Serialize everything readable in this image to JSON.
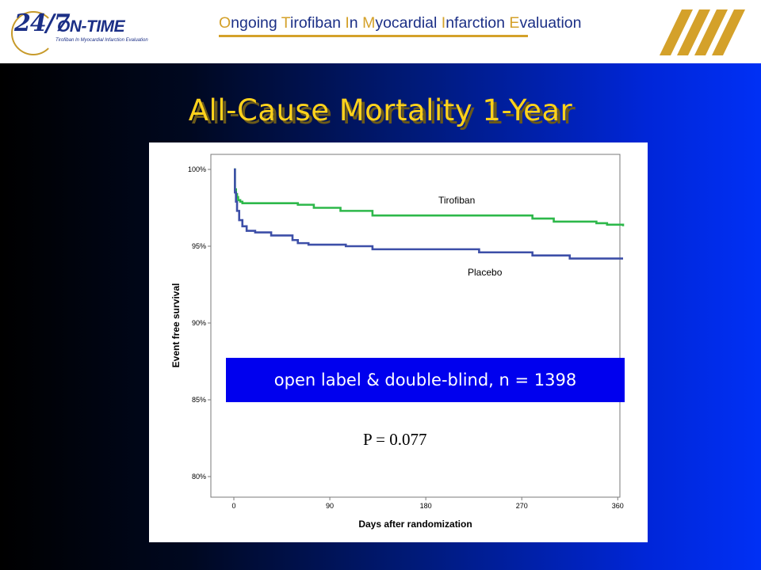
{
  "header": {
    "logo_numeral": "24/7",
    "logo_name": "ON-TIME",
    "logo_subtitle": "Tirofiban In Myocardial Infarction Evaluation",
    "trial_name_parts": [
      {
        "text": "O",
        "cap": true
      },
      {
        "text": "ngoing ",
        "cap": false
      },
      {
        "text": "T",
        "cap": true
      },
      {
        "text": "irofiban ",
        "cap": false
      },
      {
        "text": "I",
        "cap": true
      },
      {
        "text": "n ",
        "cap": false
      },
      {
        "text": "M",
        "cap": true
      },
      {
        "text": "yocardial ",
        "cap": false
      },
      {
        "text": "I",
        "cap": true
      },
      {
        "text": "nfarction ",
        "cap": false
      },
      {
        "text": "E",
        "cap": true
      },
      {
        "text": "valuation",
        "cap": false
      }
    ],
    "brand_color": "#1b2f86",
    "accent_color": "#d4a12a"
  },
  "slide": {
    "title": "All-Cause Mortality 1-Year",
    "title_color": "#ffd21c",
    "callout": "open label & double-blind, n = 1398",
    "pvalue": "P = 0.077"
  },
  "chart_data": {
    "type": "line",
    "xlabel": "Days after randomization",
    "ylabel": "Event free survival",
    "xlim": [
      0,
      365
    ],
    "ylim": [
      80,
      100
    ],
    "x_ticks": [
      0,
      90,
      180,
      270,
      360
    ],
    "x_tick_labels": [
      "0",
      "90",
      "180",
      "270",
      "360"
    ],
    "y_ticks": [
      80,
      85,
      90,
      95,
      100
    ],
    "y_tick_labels": [
      "80%",
      "85%",
      "90%",
      "95%",
      "100%"
    ],
    "series": [
      {
        "name": "Tirofiban",
        "color": "#2db84a",
        "x": [
          0,
          1,
          2,
          3,
          4,
          6,
          8,
          10,
          60,
          75,
          100,
          130,
          280,
          300,
          340,
          350,
          365
        ],
        "y": [
          100,
          98.7,
          98.4,
          98.2,
          98.0,
          97.9,
          97.8,
          97.8,
          97.7,
          97.5,
          97.3,
          97.0,
          96.8,
          96.6,
          96.5,
          96.4,
          96.3
        ]
      },
      {
        "name": "Placebo",
        "color": "#3d4fa8",
        "x": [
          0,
          1,
          2,
          3,
          5,
          8,
          12,
          20,
          35,
          55,
          60,
          70,
          105,
          130,
          230,
          280,
          315,
          365
        ],
        "y": [
          100,
          98.5,
          97.9,
          97.3,
          96.7,
          96.3,
          96.0,
          95.9,
          95.7,
          95.4,
          95.2,
          95.1,
          95.0,
          94.8,
          94.6,
          94.4,
          94.2,
          94.2
        ]
      }
    ]
  }
}
